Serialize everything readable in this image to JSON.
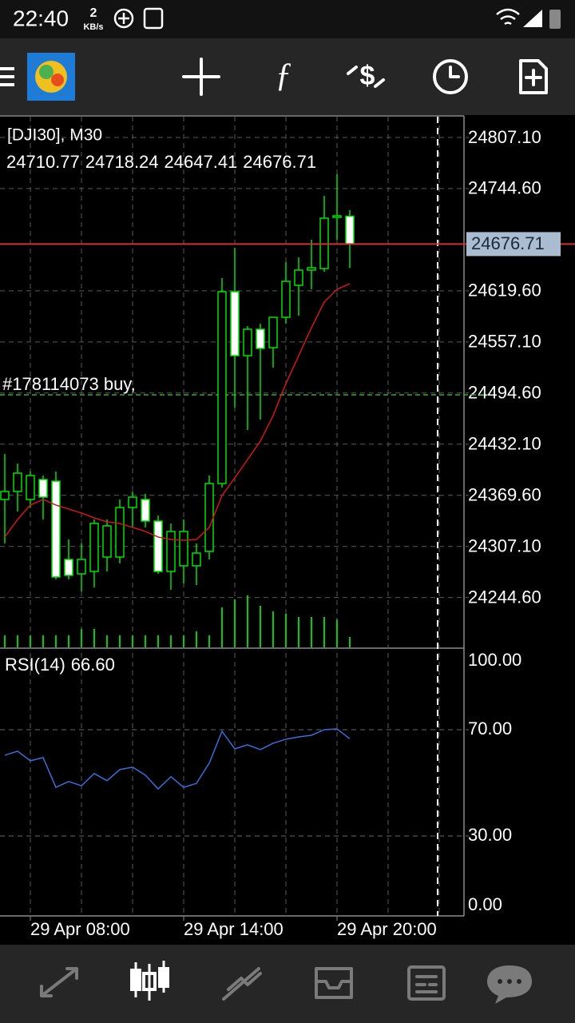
{
  "status_bar": {
    "time": "22:40",
    "speed": "2",
    "speed_unit": "KB/s"
  },
  "chart_data": [
    {
      "type": "candlestick",
      "symbol_label": "[DJI30], M30",
      "categories": [
        null,
        null,
        "29 Apr 08:00",
        null,
        null,
        null,
        null,
        null,
        null,
        null,
        null,
        null,
        null,
        null,
        "29 Apr 14:00",
        null,
        null,
        null,
        null,
        null,
        null,
        null,
        null,
        null,
        null,
        null,
        "29 Apr 20:00",
        null
      ],
      "open": [
        24364.5,
        24374.3,
        24364.5,
        24388.9,
        24386.9,
        24291.2,
        24273.6,
        24276.5,
        24294.1,
        24294.1,
        24354.7,
        24364.5,
        24338.1,
        24276.5,
        24283.4,
        24283.4,
        24301.0,
        24384.0,
        24618.5,
        24540.3,
        24572.6,
        24550.1,
        24587.2,
        24626.3,
        24644.9,
        24646.8,
        24709.4,
        24710.77
      ],
      "high": [
        24420.2,
        24408.4,
        24398.7,
        24393.8,
        24398.7,
        24315.6,
        24310.7,
        24340.1,
        24340.1,
        24364.5,
        24374.3,
        24371.4,
        24344.9,
        24335.2,
        24340.1,
        24310.7,
        24393.8,
        24635.1,
        24672.2,
        24576.5,
        24579.4,
        24587.2,
        24654.6,
        24660.5,
        24682.0,
        24735.7,
        24762.1,
        24718.24
      ],
      "low": [
        24310.7,
        24349.8,
        24354.7,
        24340.1,
        24266.8,
        24266.8,
        24252.1,
        24257.0,
        24276.5,
        24286.3,
        24330.3,
        24330.3,
        24273.6,
        24254.1,
        24261.9,
        24259.9,
        24291.2,
        24379.1,
        24476.8,
        24449.5,
        24462.2,
        24525.7,
        24579.4,
        24589.2,
        24621.4,
        24642.9,
        24682.0,
        24647.41
      ],
      "close": [
        24374.3,
        24396.7,
        24393.8,
        24367.4,
        24269.7,
        24271.7,
        24291.2,
        24335.2,
        24332.2,
        24354.7,
        24367.4,
        24338.1,
        24276.5,
        24325.4,
        24325.4,
        24299.0,
        24384.0,
        24618.5,
        24540.3,
        24572.6,
        24549.1,
        24587.2,
        24631.2,
        24644.9,
        24647.8,
        24708.4,
        24711.3,
        24676.71
      ],
      "color": "#00e000",
      "ma": {
        "color": "#d01818",
        "values": [
          24318.6,
          24340.1,
          24357.7,
          24364.5,
          24357.7,
          24352.8,
          24347.9,
          24342.0,
          24337.1,
          24335.2,
          24330.3,
          24325.4,
          24318.6,
          24315.6,
          24314.6,
          24315.6,
          24330.3,
          24369.4,
          24390.9,
          24413.3,
          24435.8,
          24467.1,
          24506.2,
          24540.3,
          24574.5,
          24605.8,
          24621.4,
          24628.3
        ]
      },
      "volume": {
        "color": "#00d000",
        "values": [
          15,
          15,
          15,
          15,
          15,
          15,
          23,
          23,
          15,
          15,
          15,
          15,
          15,
          15,
          15,
          20,
          15,
          50,
          60,
          65,
          52,
          45,
          42,
          38,
          38,
          38,
          35,
          13
        ]
      },
      "price_line_color": "#d03030",
      "order": {
        "label": "#178114073 buy,",
        "value": 24492.5,
        "color": "#2fae2f"
      },
      "ylim": [
        24183.7,
        24830.5
      ],
      "yticks": [
        {
          "value": 24807.1,
          "label": "24807.10"
        },
        {
          "value": 24744.6,
          "label": "24744.60"
        },
        {
          "value": 24619.6,
          "label": "24619.60"
        },
        {
          "value": 24557.1,
          "label": "24557.10"
        },
        {
          "value": 24494.6,
          "label": "24494.60"
        },
        {
          "value": 24432.1,
          "label": "24432.10"
        },
        {
          "value": 24369.6,
          "label": "24369.60"
        },
        {
          "value": 24307.1,
          "label": "24307.10"
        },
        {
          "value": 24244.6,
          "label": "24244.60"
        }
      ]
    },
    {
      "type": "line",
      "title": "RSI(14)",
      "value_label": "66.60",
      "color": "#3a6fd8",
      "values": [
        60.4,
        61.9,
        58.3,
        59.5,
        48.3,
        50.5,
        48.9,
        53.5,
        50.8,
        55.0,
        55.9,
        52.9,
        47.7,
        52.3,
        48.3,
        49.8,
        57.4,
        69.4,
        62.8,
        64.3,
        62.5,
        64.9,
        66.4,
        67.3,
        67.9,
        70.0,
        70.3,
        66.6
      ],
      "ylim": [
        0,
        100
      ],
      "yticks": [
        {
          "value": 100,
          "label": "100.00"
        },
        {
          "value": 70,
          "label": "70.00"
        },
        {
          "value": 30,
          "label": "30.00"
        },
        {
          "value": 0,
          "label": "0.00"
        }
      ]
    }
  ]
}
